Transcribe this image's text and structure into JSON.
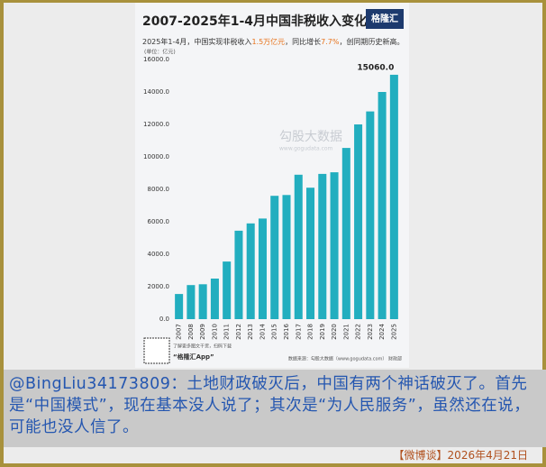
{
  "chart_data": {
    "type": "bar",
    "title": "2007-2025年1-4月中国非税收入变化",
    "subtitle": [
      "2025年1-4月，中国实现非税收入",
      "1.5万亿元",
      "，同比增长",
      "7.7%",
      "，创同期历史新高。"
    ],
    "unit": "(单位：亿元)",
    "logo": "格隆汇",
    "watermark": [
      "勾股大数据",
      "www.gogudata.com"
    ],
    "source": "数据来源：勾股大数据（www.gogudata.com） 财政部",
    "qr_note": [
      "了解更多图文干货，扫码下载",
      "“格隆汇App”"
    ],
    "categories": [
      "2007",
      "2008",
      "2009",
      "2010",
      "2011",
      "2012",
      "2013",
      "2014",
      "2015",
      "2016",
      "2017",
      "2018",
      "2019",
      "2020",
      "2021",
      "2022",
      "2023",
      "2024",
      "2025"
    ],
    "values": [
      1550,
      2100,
      2150,
      2500,
      3550,
      5450,
      5900,
      6200,
      7600,
      7650,
      8900,
      8100,
      8950,
      9050,
      10550,
      12000,
      12800,
      14000,
      15060
    ],
    "value_labels": [
      null,
      null,
      null,
      null,
      null,
      null,
      null,
      null,
      null,
      null,
      null,
      null,
      null,
      null,
      null,
      null,
      null,
      null,
      "15060.0"
    ],
    "color": "#22aebf",
    "ylim": [
      0,
      16000
    ],
    "yticks": [
      {
        "value": 0,
        "label": "0.0"
      },
      {
        "value": 2000,
        "label": "2000.0"
      },
      {
        "value": 4000,
        "label": "4000.0"
      },
      {
        "value": 6000,
        "label": "6000.0"
      },
      {
        "value": 8000,
        "label": "8000.0"
      },
      {
        "value": 10000,
        "label": "10000.0"
      },
      {
        "value": 12000,
        "label": "12000.0"
      },
      {
        "value": 14000,
        "label": "14000.0"
      },
      {
        "value": 16000,
        "label": "16000.0"
      }
    ],
    "grid": false
  },
  "post": {
    "text": "@BingLiu34173809：土地财政破灭后，中国有两个神话破灭了。首先是“中国模式”，现在基本没人说了；其次是“为人民服务”，虽然还在说，可能也没人信了。",
    "footer": "【微博谈】2026年4月21日"
  }
}
